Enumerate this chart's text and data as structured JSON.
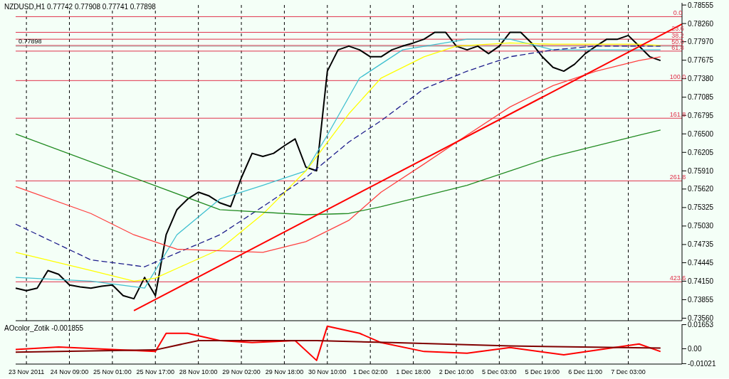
{
  "chart_data": [
    {
      "type": "line",
      "title": "NZDUSD,H1  0.77742 0.77908 0.77741 0.77898",
      "ylim": [
        0.7352,
        0.7859
      ],
      "yticks": [
        {
          "value": 0.78555,
          "label": "0.78555"
        },
        {
          "value": 0.7826,
          "label": "0.78260"
        },
        {
          "value": 0.7797,
          "label": "0.77970"
        },
        0.77675,
        {
          "value": 0.7738,
          "label": "0.77380"
        },
        0.77085,
        0.76795,
        {
          "value": 0.765,
          "label": "0.76500"
        },
        0.76205,
        {
          "value": 0.7591,
          "label": "0.75910"
        },
        {
          "value": 0.7562,
          "label": "0.75620"
        },
        0.75325,
        {
          "value": 0.7503,
          "label": "0.75030"
        },
        0.74735,
        0.74445,
        {
          "value": 0.7415,
          "label": "0.74150"
        },
        0.73855,
        {
          "value": 0.7356,
          "label": "0.73560"
        }
      ],
      "tick_labels": "y",
      "grid": "x",
      "marker": "none",
      "series": [
        {
          "color": "#000000",
          "values": [
            0.7404,
            0.74,
            0.7404,
            0.7432,
            0.7426,
            0.7409,
            0.7406,
            0.7404,
            0.7407,
            0.7409,
            0.7392,
            0.7387,
            0.7421,
            0.7392,
            0.7489,
            0.7529,
            0.7546,
            0.7557,
            0.7551,
            0.754,
            0.7534,
            0.758,
            0.7619,
            0.7614,
            0.7619,
            0.7631,
            0.7642,
            0.7597,
            0.7591,
            0.775,
            0.7784,
            0.779,
            0.7784,
            0.7773,
            0.7773,
            0.7784,
            0.779,
            0.7795,
            0.7801,
            0.7812,
            0.7812,
            0.779,
            0.7784,
            0.779,
            0.7778,
            0.779,
            0.7812,
            0.7812,
            0.7795,
            0.7773,
            0.7756,
            0.775,
            0.7761,
            0.7778,
            0.779,
            0.7801,
            0.7801,
            0.7807,
            0.779,
            0.7773,
            0.7767,
            null,
            null
          ]
        },
        {
          "color": "#40c0d0",
          "values": [
            0.7421,
            null,
            null,
            null,
            null,
            null,
            null,
            0.7415,
            null,
            null,
            null,
            null,
            0.7404,
            null,
            null,
            0.7489,
            null,
            null,
            null,
            0.7546,
            null,
            null,
            null,
            0.7568,
            null,
            null,
            null,
            0.7591,
            null,
            0.7648,
            null,
            null,
            0.7739,
            null,
            null,
            null,
            0.7784,
            null,
            null,
            null,
            null,
            null,
            0.7801,
            null,
            null,
            null,
            0.7801,
            null,
            null,
            null,
            0.7784,
            null,
            null,
            null,
            null,
            null,
            null,
            null,
            null,
            null,
            0.7784,
            null,
            null
          ]
        },
        {
          "color": "#ffff00",
          "values": [
            0.7461,
            null,
            null,
            null,
            null,
            null,
            null,
            0.7432,
            null,
            null,
            null,
            0.7415,
            null,
            0.742,
            null,
            null,
            0.7443,
            null,
            null,
            0.7466,
            null,
            null,
            null,
            0.7522,
            null,
            null,
            null,
            0.7591,
            null,
            null,
            null,
            0.7682,
            null,
            null,
            0.7739,
            null,
            null,
            null,
            0.7773,
            null,
            null,
            0.779,
            null,
            null,
            null,
            null,
            0.7795,
            null,
            null,
            null,
            0.7793,
            null,
            null,
            null,
            0.7793,
            null,
            null,
            null,
            0.7793,
            null,
            0.7791,
            null,
            null
          ]
        },
        {
          "color": "#1e1e8c",
          "line_style": "dashed",
          "values": [
            0.7506,
            null,
            null,
            null,
            null,
            null,
            null,
            0.7449,
            null,
            null,
            null,
            null,
            0.7438,
            null,
            null,
            null,
            null,
            null,
            null,
            0.7489,
            null,
            null,
            null,
            0.7534,
            null,
            null,
            null,
            0.758,
            null,
            null,
            null,
            0.7637,
            null,
            null,
            0.7671,
            null,
            null,
            null,
            0.7722,
            null,
            null,
            null,
            0.775,
            null,
            null,
            null,
            0.7773,
            null,
            null,
            null,
            0.7784,
            null,
            null,
            null,
            0.779,
            null,
            null,
            null,
            null,
            null,
            0.779,
            null,
            null
          ]
        },
        {
          "color": "#ff4040",
          "values": [
            0.7566,
            null,
            null,
            null,
            null,
            null,
            null,
            0.7523,
            null,
            null,
            null,
            0.7489,
            null,
            null,
            null,
            0.7466,
            null,
            null,
            null,
            null,
            null,
            null,
            null,
            0.7461,
            null,
            null,
            null,
            0.7478,
            null,
            null,
            null,
            0.7512,
            null,
            null,
            0.7557,
            null,
            null,
            null,
            0.7602,
            null,
            null,
            null,
            0.7648,
            null,
            null,
            null,
            0.7693,
            null,
            null,
            null,
            0.7727,
            null,
            null,
            null,
            0.775,
            null,
            null,
            null,
            0.7767,
            null,
            0.7773,
            null,
            null
          ]
        },
        {
          "color": "#228b22",
          "values": [
            0.765,
            null,
            null,
            null,
            null,
            null,
            null,
            null,
            null,
            null,
            null,
            null,
            null,
            null,
            null,
            null,
            null,
            null,
            null,
            0.7529,
            null,
            null,
            null,
            null,
            null,
            null,
            null,
            0.7521,
            null,
            null,
            null,
            0.7523,
            null,
            null,
            0.7534,
            null,
            null,
            null,
            0.7551,
            null,
            null,
            null,
            0.7568,
            null,
            null,
            null,
            0.7591,
            null,
            null,
            null,
            0.7614,
            null,
            null,
            null,
            0.7631,
            null,
            null,
            null,
            0.7648,
            null,
            0.7656,
            null,
            null
          ]
        },
        {
          "color": "#ff0000",
          "values": [
            null,
            null,
            null,
            null,
            null,
            null,
            null,
            null,
            null,
            null,
            null,
            0.7368,
            null,
            null,
            null,
            null,
            null,
            null,
            null,
            null,
            null,
            null,
            null,
            null,
            null,
            null,
            null,
            null,
            null,
            null,
            null,
            null,
            null,
            null,
            null,
            null,
            null,
            null,
            null,
            null,
            null,
            null,
            null,
            null,
            null,
            null,
            null,
            null,
            null,
            null,
            null,
            null,
            null,
            null,
            null,
            null,
            null,
            null,
            null,
            null,
            null,
            null,
            0.7825
          ]
        }
      ],
      "ref_lines": [
        {
          "axis": "y",
          "value": 0.7837,
          "color": "#e0304a"
        },
        {
          "axis": "y",
          "value": 0.7812,
          "color": "#e0304a"
        },
        {
          "axis": "y",
          "value": 0.7801,
          "color": "#e0304a"
        },
        {
          "axis": "y",
          "value": 0.7791,
          "color": "#e0304a"
        },
        {
          "axis": "y",
          "value": 0.7782,
          "color": "#e0304a"
        },
        {
          "axis": "y",
          "value": 0.7735,
          "color": "#e0304a"
        },
        {
          "axis": "y",
          "value": 0.7675,
          "color": "#e0304a"
        },
        {
          "axis": "y",
          "value": 0.7575,
          "color": "#e0304a"
        },
        {
          "axis": "y",
          "value": 0.7414,
          "color": "#e0304a"
        },
        {
          "axis": "y",
          "value": 0.77898,
          "label": "0.77898",
          "color": "#a0a0a0"
        }
      ],
      "annotations": [
        {
          "text": "0.0",
          "y": 0.7837
        },
        {
          "text": "23.6",
          "y": 0.7812
        },
        {
          "text": "38.2",
          "y": 0.7801
        },
        {
          "text": "50.0",
          "y": 0.7791
        },
        {
          "text": "61.8",
          "y": 0.7782
        },
        {
          "text": "100.0",
          "y": 0.7735
        },
        {
          "text": "161.8",
          "y": 0.7675
        },
        {
          "text": "261.8",
          "y": 0.7575
        },
        {
          "text": "423.6",
          "y": 0.7414
        }
      ]
    },
    {
      "type": "line",
      "title": "AOcolor_Zotik -0.001855",
      "categories": [
        null,
        "23 Nov 2011",
        null,
        null,
        null,
        "24 Nov 09:00",
        null,
        null,
        null,
        "25 Nov 01:00",
        null,
        null,
        null,
        "25 Nov 17:00",
        null,
        null,
        null,
        "28 Nov 10:00",
        null,
        null,
        null,
        "29 Nov 02:00",
        null,
        null,
        null,
        "29 Nov 18:00",
        null,
        null,
        null,
        "30 Nov 10:00",
        null,
        null,
        null,
        "1 Dec 02:00",
        null,
        null,
        null,
        "1 Dec 18:00",
        null,
        null,
        null,
        "2 Dec 10:00",
        null,
        null,
        null,
        "5 Dec 03:00",
        null,
        null,
        null,
        "5 Dec 19:00",
        null,
        null,
        null,
        "6 Dec 11:00",
        null,
        null,
        null,
        "7 Dec 03:00",
        null,
        null,
        null,
        null,
        null
      ],
      "ylim": [
        -0.0105,
        0.0168
      ],
      "yticks": [
        0.01653,
        {
          "value": 0,
          "label": "0.00"
        },
        -0.01021
      ],
      "grid": "x",
      "marker": "none",
      "series": [
        {
          "color": "#ff0000",
          "values": [
            -0.0005,
            null,
            null,
            null,
            0.0012,
            null,
            null,
            null,
            null,
            null,
            null,
            null,
            null,
            -0.0019,
            0.0106,
            null,
            0.0106,
            null,
            null,
            0.0056,
            null,
            null,
            0.0042,
            null,
            null,
            null,
            0.0056,
            null,
            -0.008,
            0.0155,
            null,
            null,
            0.0106,
            null,
            0.0042,
            null,
            null,
            null,
            -0.0019,
            null,
            null,
            null,
            -0.0031,
            null,
            null,
            null,
            0.0008,
            null,
            null,
            null,
            null,
            -0.0042,
            null,
            null,
            null,
            null,
            null,
            null,
            0.0033,
            null,
            -0.0019,
            null,
            null
          ]
        },
        {
          "color": "#800000",
          "values": [
            -0.0023,
            null,
            null,
            null,
            null,
            null,
            null,
            null,
            null,
            null,
            null,
            null,
            null,
            -0.0008,
            null,
            null,
            null,
            0.0056,
            null,
            null,
            null,
            null,
            null,
            null,
            null,
            null,
            null,
            null,
            0.0056,
            null,
            null,
            null,
            null,
            null,
            null,
            0.0042,
            null,
            null,
            null,
            null,
            null,
            null,
            null,
            null,
            null,
            null,
            0.0019,
            null,
            null,
            null,
            null,
            null,
            null,
            null,
            null,
            null,
            null,
            null,
            null,
            null,
            0.0005,
            null,
            null
          ]
        }
      ]
    }
  ]
}
